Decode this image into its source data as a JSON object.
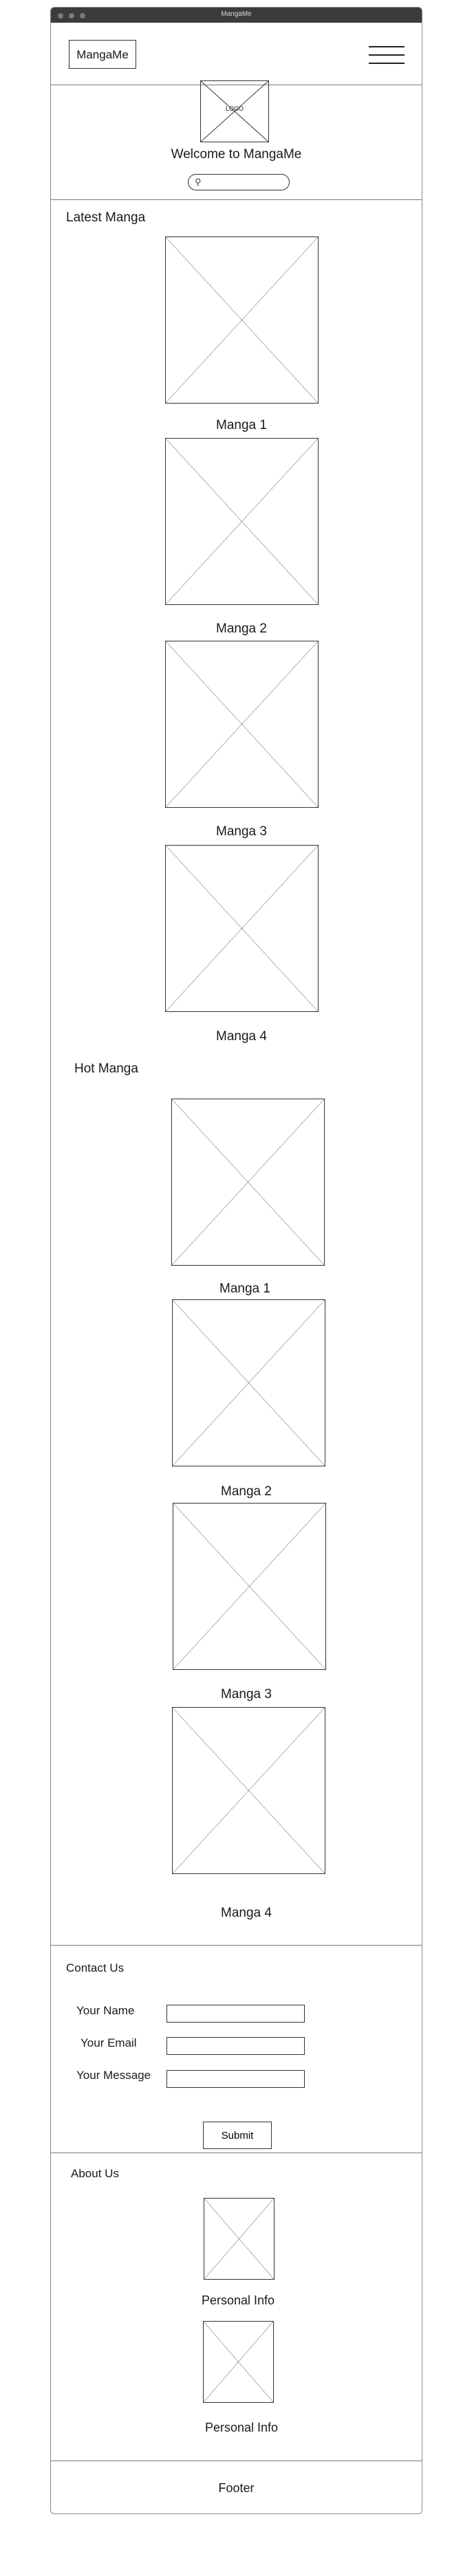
{
  "window": {
    "title": "MangaMe"
  },
  "header": {
    "brand": "MangaMe",
    "menu_icon": "hamburger-icon"
  },
  "hero": {
    "logo_label": "LOGO",
    "welcome": "Welcome to MangaMe",
    "search_icon": "search-icon"
  },
  "latest": {
    "title": "Latest Manga",
    "items": [
      {
        "title": "Manga 1"
      },
      {
        "title": "Manga 2"
      },
      {
        "title": "Manga 3"
      },
      {
        "title": "Manga 4"
      }
    ]
  },
  "hot": {
    "title": "Hot Manga",
    "items": [
      {
        "title": "Manga 1"
      },
      {
        "title": "Manga 2"
      },
      {
        "title": "Manga 3"
      },
      {
        "title": "Manga 4"
      }
    ]
  },
  "contact": {
    "title": "Contact Us",
    "name_label": "Your Name",
    "email_label": "Your Email",
    "message_label": "Your Message",
    "submit_label": "Submit"
  },
  "about": {
    "title": "About Us",
    "people": [
      {
        "label": "Personal Info"
      },
      {
        "label": "Personal Info"
      }
    ]
  },
  "footer": {
    "text": "Footer"
  }
}
